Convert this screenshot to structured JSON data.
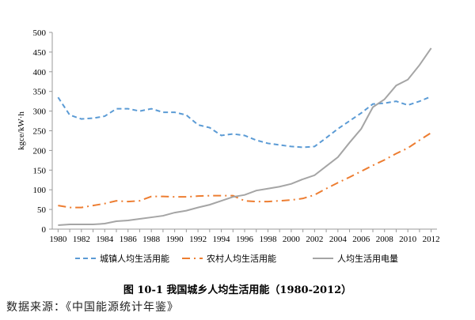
{
  "chart_data": {
    "type": "line",
    "title": "",
    "ylabel": "kgce/kW·h",
    "xlabel": "",
    "ylim": [
      0,
      500
    ],
    "yticks": [
      0,
      50,
      100,
      150,
      200,
      250,
      300,
      350,
      400,
      450,
      500
    ],
    "xticks": [
      1980,
      1982,
      1984,
      1986,
      1988,
      1990,
      1992,
      1994,
      1996,
      1998,
      2000,
      2002,
      2004,
      2006,
      2008,
      2010,
      2012
    ],
    "x": [
      1980,
      1981,
      1982,
      1983,
      1984,
      1985,
      1986,
      1987,
      1988,
      1989,
      1990,
      1991,
      1992,
      1993,
      1994,
      1995,
      1996,
      1997,
      1998,
      1999,
      2000,
      2001,
      2002,
      2003,
      2004,
      2005,
      2006,
      2007,
      2008,
      2009,
      2010,
      2011,
      2012
    ],
    "grid": false,
    "legend": "bottom",
    "series": [
      {
        "name": "城镇人均生活用能",
        "color": "#5B9BD5",
        "style": "dashed",
        "values": [
          335,
          290,
          280,
          282,
          287,
          306,
          306,
          300,
          306,
          297,
          297,
          290,
          265,
          258,
          238,
          242,
          238,
          226,
          218,
          214,
          210,
          208,
          210,
          232,
          255,
          275,
          295,
          318,
          320,
          325,
          315,
          325,
          337
        ]
      },
      {
        "name": "农村人均生活用能",
        "color": "#ED7D31",
        "style": "dashdot",
        "values": [
          60,
          55,
          55,
          60,
          65,
          72,
          70,
          72,
          83,
          83,
          82,
          82,
          84,
          85,
          85,
          85,
          72,
          70,
          70,
          72,
          74,
          78,
          87,
          103,
          118,
          132,
          147,
          162,
          176,
          192,
          206,
          226,
          245
        ]
      },
      {
        "name": "人均生活用电量",
        "color": "#A5A5A5",
        "style": "solid",
        "values": [
          10,
          12,
          12,
          12,
          14,
          20,
          22,
          26,
          30,
          34,
          42,
          47,
          55,
          62,
          72,
          82,
          87,
          98,
          103,
          108,
          115,
          127,
          137,
          160,
          183,
          220,
          255,
          310,
          330,
          365,
          380,
          417,
          460
        ]
      }
    ]
  },
  "caption": "图  10-1  我国城乡人均生活用能（1980-2012）",
  "source": "数据来源：《中国能源统计年鉴》"
}
